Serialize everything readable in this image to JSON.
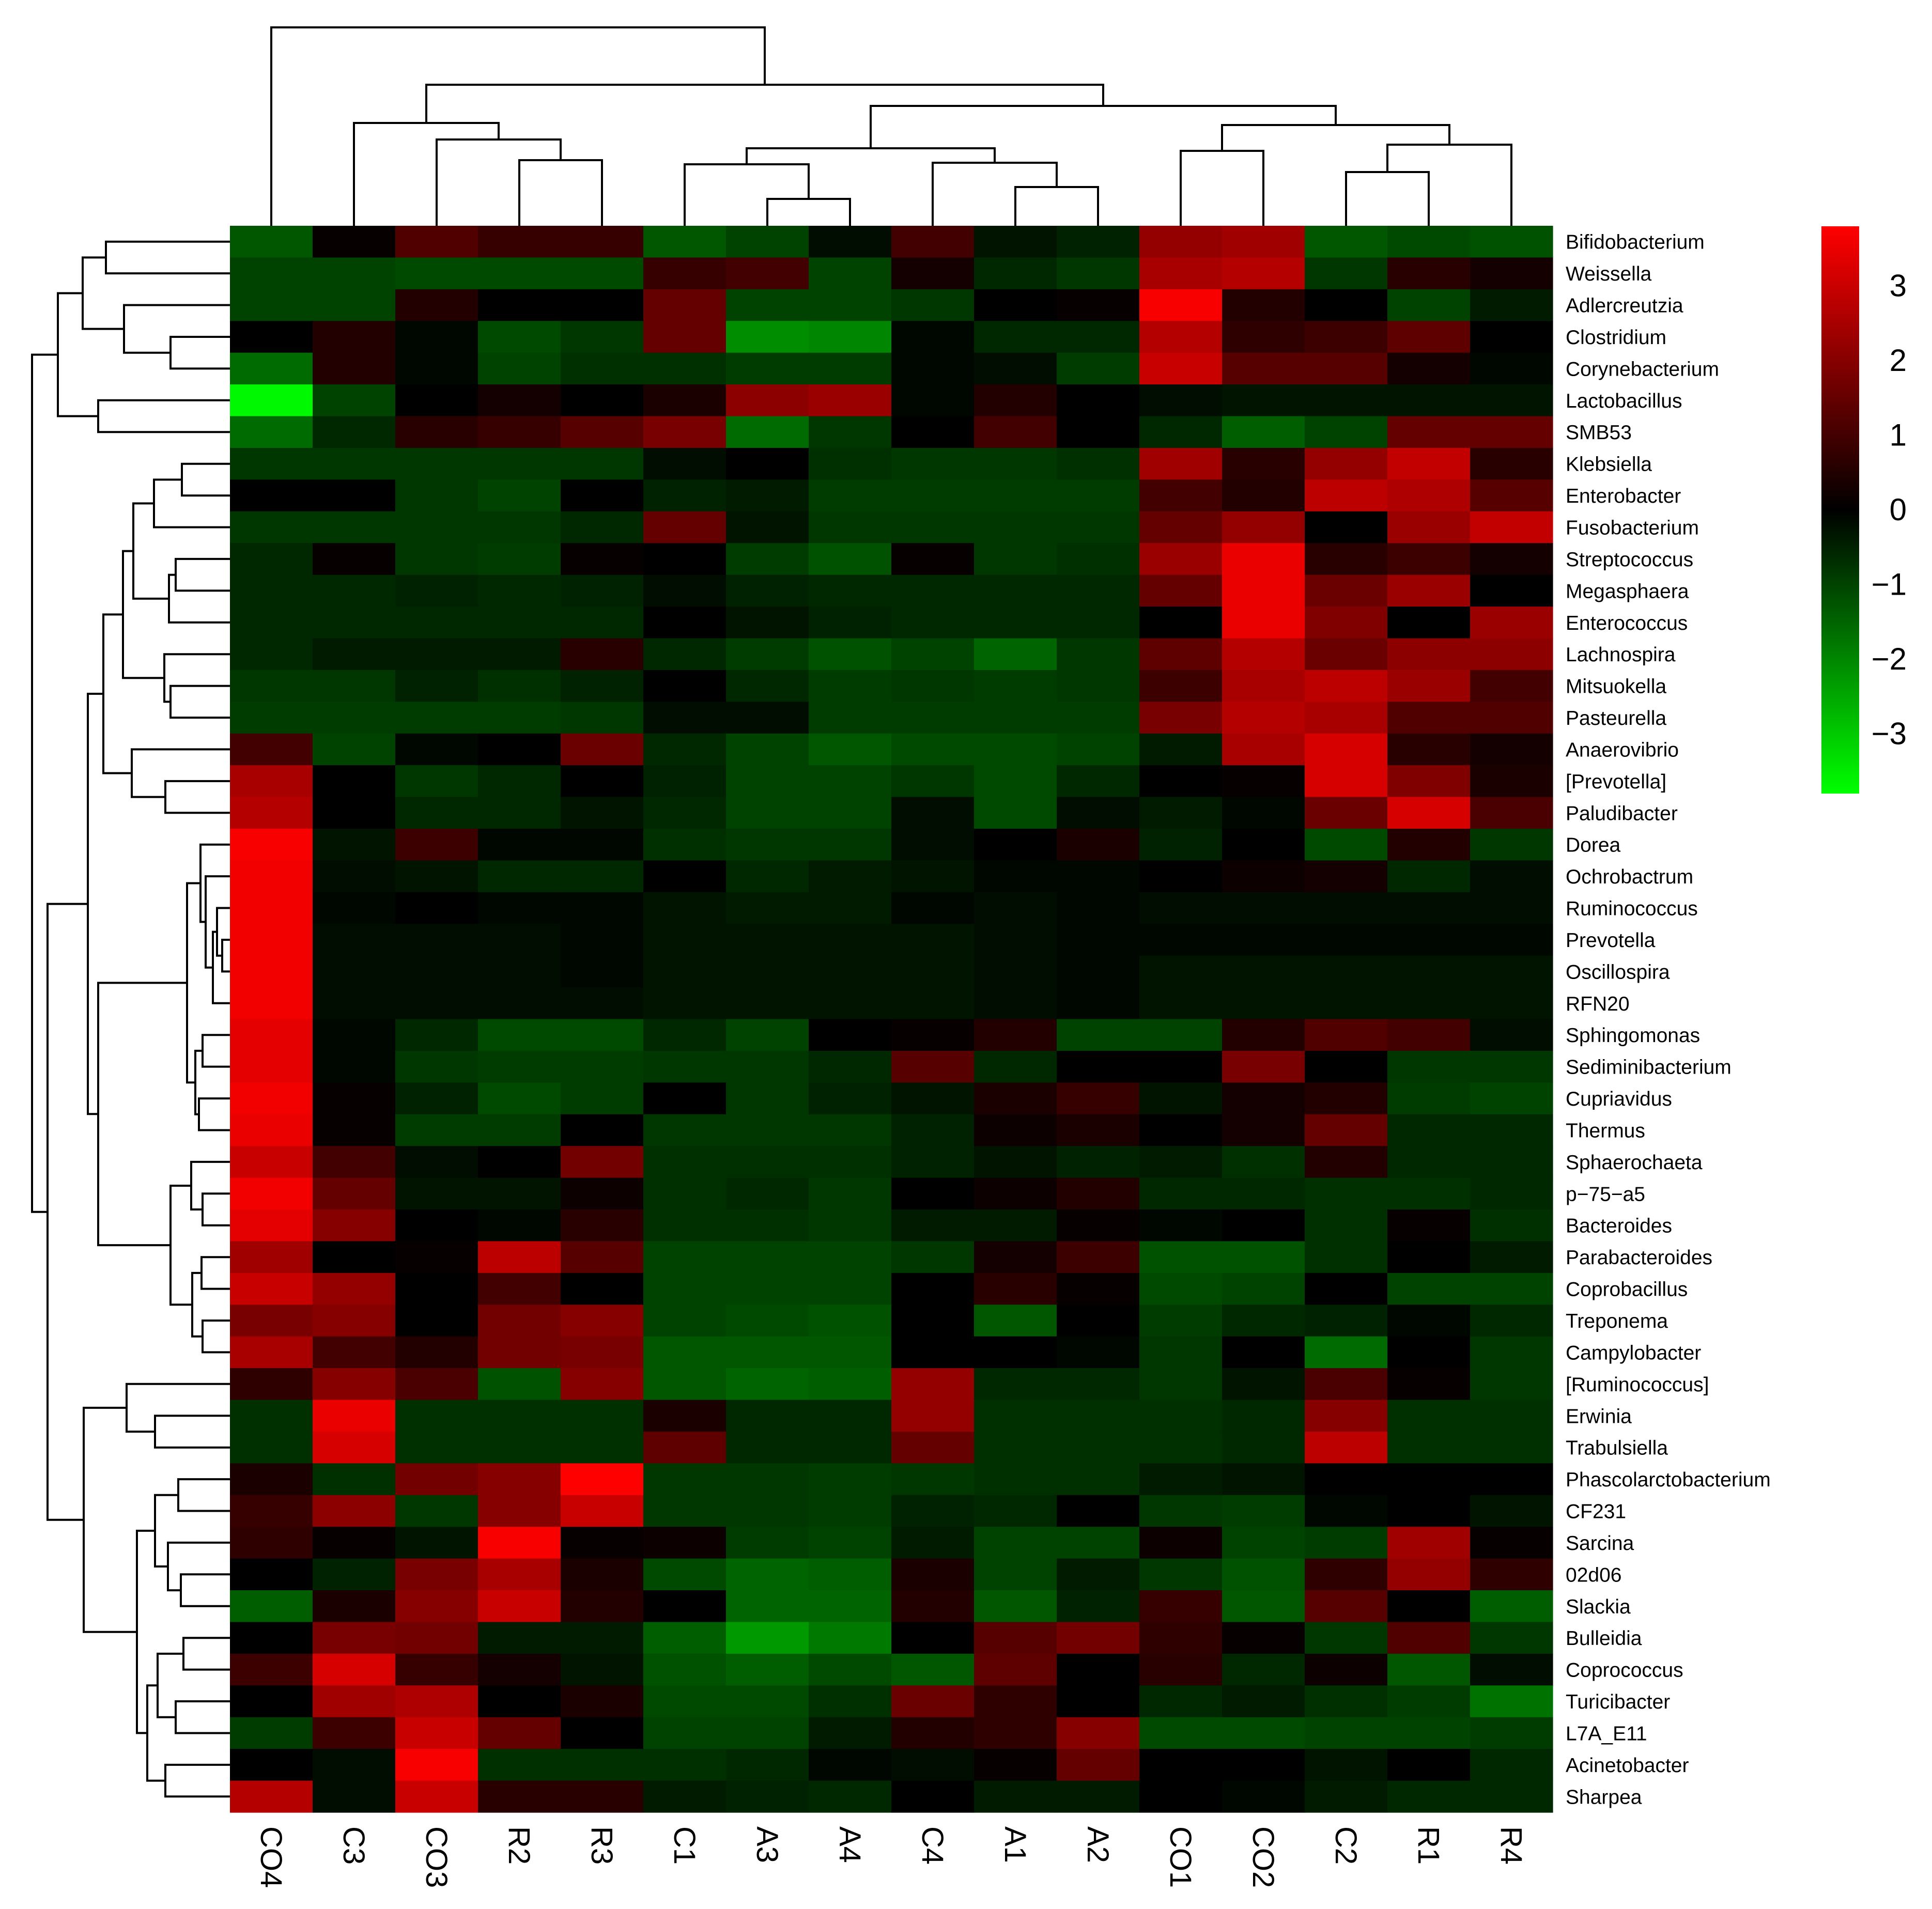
{
  "chart_data": {
    "type": "heatmap",
    "title": "",
    "xlabel": "",
    "ylabel": "",
    "columns": [
      "CO4",
      "C3",
      "CO3",
      "R2",
      "R3",
      "C1",
      "A3",
      "A4",
      "C4",
      "A1",
      "A2",
      "CO1",
      "CO2",
      "C2",
      "R1",
      "R4"
    ],
    "rows": [
      "Bifidobacterium",
      "Weissella",
      "Adlercreutzia",
      "Clostridium",
      "Corynebacterium",
      "Lactobacillus",
      "SMB53",
      "Klebsiella",
      "Enterobacter",
      "Fusobacterium",
      "Streptococcus",
      "Megasphaera",
      "Enterococcus",
      "Lachnospira",
      "Mitsuokella",
      "Pasteurella",
      "Anaerovibrio",
      "[Prevotella]",
      "Paludibacter",
      "Dorea",
      "Ochrobactrum",
      "Ruminococcus",
      "Prevotella",
      "Oscillospira",
      "RFN20",
      "Sphingomonas",
      "Sediminibacterium",
      "Cupriavidus",
      "Thermus",
      "Sphaerochaeta",
      "p−75−a5",
      "Bacteroides",
      "Parabacteroides",
      "Coprobacillus",
      "Treponema",
      "Campylobacter",
      "[Ruminococcus]",
      "Erwinia",
      "Trabulsiella",
      "Phascolarctobacterium",
      "CF231",
      "Sarcina",
      "02d06",
      "Slackia",
      "Bulleidia",
      "Coprococcus",
      "Turicibacter",
      "L7A_E11",
      "Acinetobacter",
      "Sharpea"
    ],
    "values": [
      [
        -1.3,
        0.1,
        1.2,
        0.8,
        0.8,
        -1.3,
        -1.0,
        -0.2,
        1.0,
        -0.3,
        -0.5,
        2.2,
        2.4,
        -1.3,
        -1.1,
        -1.2
      ],
      [
        -1.0,
        -1.0,
        -1.1,
        -1.1,
        -1.1,
        0.8,
        1.0,
        -1.0,
        0.3,
        -0.6,
        -0.8,
        2.5,
        2.7,
        -0.8,
        0.6,
        0.3
      ],
      [
        -1.0,
        -1.0,
        0.5,
        0.0,
        0.0,
        1.5,
        -1.0,
        -1.0,
        -0.8,
        0.0,
        0.1,
        3.7,
        0.5,
        0.0,
        -1.0,
        -0.4
      ],
      [
        0.0,
        0.5,
        -0.1,
        -1.1,
        -0.8,
        1.5,
        -2.1,
        -2.0,
        -0.1,
        -0.6,
        -0.6,
        2.7,
        0.7,
        0.9,
        1.4,
        0.0
      ],
      [
        -1.6,
        0.5,
        -0.1,
        -1.0,
        -0.7,
        -0.7,
        -0.9,
        -0.9,
        -0.1,
        -0.2,
        -0.9,
        3.0,
        1.3,
        1.3,
        0.3,
        -0.1
      ],
      [
        -3.7,
        -1.0,
        0.0,
        0.3,
        0.0,
        0.4,
        2.1,
        2.3,
        -0.1,
        0.5,
        0.0,
        -0.2,
        -0.3,
        -0.3,
        -0.3,
        -0.3
      ],
      [
        -1.6,
        -0.6,
        0.6,
        0.8,
        1.3,
        1.8,
        -1.6,
        -0.8,
        0.0,
        1.0,
        0.0,
        -0.6,
        -1.4,
        -1.0,
        1.5,
        1.5
      ],
      [
        -0.8,
        -0.8,
        -0.8,
        -0.8,
        -0.8,
        -0.2,
        0.0,
        -0.7,
        -0.8,
        -0.8,
        -0.7,
        2.4,
        0.6,
        2.2,
        2.9,
        0.6
      ],
      [
        0.0,
        0.0,
        -0.8,
        -1.0,
        0.0,
        -0.5,
        -0.4,
        -0.9,
        -0.9,
        -0.9,
        -0.9,
        1.0,
        0.5,
        2.8,
        2.6,
        1.3
      ],
      [
        -0.8,
        -0.8,
        -0.8,
        -0.8,
        -0.6,
        1.5,
        -0.3,
        -0.8,
        -0.8,
        -0.8,
        -0.8,
        1.5,
        2.2,
        0.0,
        2.3,
        2.9
      ],
      [
        -0.6,
        0.1,
        -0.8,
        -0.9,
        0.1,
        0.0,
        -0.9,
        -1.2,
        0.1,
        -0.8,
        -0.7,
        2.3,
        3.5,
        0.6,
        0.9,
        0.3
      ],
      [
        -0.6,
        -0.6,
        -0.5,
        -0.6,
        -0.5,
        -0.2,
        -0.5,
        -0.6,
        -0.6,
        -0.6,
        -0.6,
        1.5,
        3.5,
        1.6,
        2.3,
        0.0
      ],
      [
        -0.6,
        -0.6,
        -0.6,
        -0.6,
        -0.6,
        0.0,
        -0.3,
        -0.5,
        -0.6,
        -0.6,
        -0.6,
        0.0,
        3.5,
        1.9,
        0.0,
        2.3
      ],
      [
        -0.6,
        -0.4,
        -0.4,
        -0.4,
        0.6,
        -0.6,
        -0.9,
        -1.2,
        -1.0,
        -1.5,
        -0.8,
        1.4,
        2.7,
        1.6,
        2.1,
        2.1
      ],
      [
        -0.8,
        -0.8,
        -0.5,
        -0.7,
        -0.5,
        0.0,
        -0.6,
        -0.9,
        -0.8,
        -0.9,
        -0.8,
        0.9,
        2.5,
        2.8,
        2.3,
        1.0
      ],
      [
        -0.9,
        -0.9,
        -0.9,
        -0.9,
        -0.8,
        -0.2,
        -0.2,
        -0.9,
        -0.9,
        -0.9,
        -0.9,
        1.8,
        2.7,
        2.5,
        1.2,
        1.2
      ],
      [
        1.0,
        -1.0,
        -0.1,
        0.0,
        1.6,
        -0.6,
        -1.0,
        -1.3,
        -1.1,
        -1.1,
        -1.0,
        -0.4,
        2.5,
        3.2,
        0.6,
        0.3
      ],
      [
        2.5,
        0.0,
        -0.8,
        -0.6,
        0.0,
        -0.5,
        -1.0,
        -1.0,
        -0.8,
        -1.1,
        -0.6,
        0.0,
        0.1,
        3.2,
        1.9,
        0.4
      ],
      [
        2.7,
        0.0,
        -0.6,
        -0.6,
        -0.3,
        -0.6,
        -1.0,
        -1.0,
        -0.2,
        -1.1,
        -0.2,
        -0.4,
        -0.1,
        1.6,
        3.2,
        1.1
      ],
      [
        3.7,
        -0.3,
        0.9,
        -0.1,
        -0.1,
        -0.7,
        -0.8,
        -0.8,
        -0.2,
        0.0,
        0.4,
        -0.5,
        0.0,
        -1.1,
        0.5,
        -0.8
      ],
      [
        3.6,
        -0.2,
        -0.3,
        -0.6,
        -0.6,
        0.0,
        -0.6,
        -0.4,
        -0.3,
        -0.1,
        -0.1,
        0.0,
        0.2,
        0.3,
        -0.6,
        -0.2
      ],
      [
        3.6,
        -0.1,
        0.0,
        -0.1,
        -0.1,
        -0.3,
        -0.4,
        -0.4,
        -0.1,
        -0.2,
        -0.1,
        -0.2,
        -0.2,
        -0.2,
        -0.2,
        -0.2
      ],
      [
        3.6,
        -0.2,
        -0.2,
        -0.2,
        -0.1,
        -0.3,
        -0.3,
        -0.3,
        -0.3,
        -0.2,
        -0.1,
        -0.1,
        -0.1,
        -0.1,
        -0.1,
        -0.1
      ],
      [
        3.6,
        -0.2,
        -0.2,
        -0.2,
        -0.1,
        -0.3,
        -0.3,
        -0.3,
        -0.3,
        -0.2,
        -0.1,
        -0.3,
        -0.3,
        -0.3,
        -0.3,
        -0.3
      ],
      [
        3.6,
        -0.2,
        -0.2,
        -0.2,
        -0.2,
        -0.3,
        -0.3,
        -0.3,
        -0.3,
        -0.2,
        -0.1,
        -0.3,
        -0.3,
        -0.3,
        -0.3,
        -0.3
      ],
      [
        3.4,
        -0.1,
        -0.6,
        -1.1,
        -1.1,
        -0.6,
        -1.0,
        0.0,
        0.1,
        0.5,
        -1.0,
        -1.0,
        0.5,
        1.2,
        1.0,
        -0.2
      ],
      [
        3.4,
        -0.1,
        -0.8,
        -0.9,
        -0.9,
        -0.8,
        -0.8,
        -0.6,
        1.3,
        -0.6,
        0.0,
        0.0,
        1.8,
        0.0,
        -0.8,
        -0.8
      ],
      [
        3.6,
        0.1,
        -0.5,
        -1.1,
        -0.9,
        0.0,
        -0.8,
        -0.5,
        -0.3,
        0.4,
        0.8,
        -0.3,
        0.3,
        0.5,
        -0.9,
        -1.0
      ],
      [
        3.5,
        0.1,
        -0.9,
        -0.9,
        0.0,
        -0.8,
        -0.8,
        -0.8,
        -0.5,
        0.2,
        0.4,
        0.0,
        0.3,
        1.5,
        -0.6,
        -0.6
      ],
      [
        3.0,
        1.0,
        -0.2,
        0.0,
        1.7,
        -0.7,
        -0.7,
        -0.7,
        -0.5,
        -0.3,
        -0.5,
        -0.4,
        -0.7,
        0.5,
        -0.6,
        -0.6
      ],
      [
        3.6,
        1.5,
        -0.3,
        -0.3,
        0.2,
        -0.7,
        -0.6,
        -0.8,
        0.0,
        0.2,
        0.5,
        -0.6,
        -0.6,
        -0.7,
        -0.7,
        -0.6
      ],
      [
        3.4,
        2.0,
        0.0,
        -0.1,
        0.6,
        -0.7,
        -0.7,
        -0.8,
        -0.4,
        -0.4,
        0.1,
        -0.1,
        0.0,
        -0.7,
        0.1,
        -0.7
      ],
      [
        2.4,
        0.0,
        0.1,
        2.8,
        1.3,
        -1.0,
        -1.0,
        -1.0,
        -0.8,
        0.3,
        0.9,
        -1.2,
        -1.2,
        -0.7,
        0.0,
        -0.4
      ],
      [
        3.0,
        2.2,
        0.0,
        1.0,
        0.0,
        -1.0,
        -1.0,
        -1.0,
        0.0,
        0.6,
        0.1,
        -1.1,
        -1.0,
        0.0,
        -1.0,
        -1.0
      ],
      [
        1.8,
        2.0,
        0.0,
        1.7,
        2.0,
        -1.0,
        -1.1,
        -1.2,
        0.0,
        -1.3,
        0.0,
        -0.9,
        -0.6,
        -0.5,
        -0.1,
        -0.6
      ],
      [
        2.5,
        1.0,
        0.5,
        1.7,
        1.8,
        -1.3,
        -1.3,
        -1.3,
        0.0,
        0.0,
        -0.1,
        -0.8,
        0.0,
        -1.6,
        0.0,
        -0.8
      ],
      [
        0.7,
        2.0,
        1.1,
        -1.2,
        2.0,
        -1.3,
        -1.5,
        -1.4,
        2.2,
        -0.6,
        -0.6,
        -0.8,
        -0.3,
        1.1,
        0.1,
        -0.8
      ],
      [
        -0.7,
        3.5,
        -0.7,
        -0.7,
        -0.7,
        0.4,
        -0.6,
        -0.6,
        2.2,
        -0.7,
        -0.7,
        -0.7,
        -0.6,
        2.0,
        -0.7,
        -0.7
      ],
      [
        -0.7,
        3.2,
        -0.7,
        -0.7,
        -0.7,
        1.4,
        -0.6,
        -0.6,
        1.5,
        -0.7,
        -0.7,
        -0.7,
        -0.6,
        2.8,
        -0.7,
        -0.7
      ],
      [
        0.4,
        -0.7,
        1.7,
        2.0,
        3.8,
        -0.8,
        -0.8,
        -0.9,
        -0.8,
        -0.7,
        -0.7,
        -0.4,
        -0.3,
        0.0,
        0.0,
        0.0
      ],
      [
        0.8,
        2.1,
        -0.8,
        2.0,
        3.0,
        -0.8,
        -0.8,
        -0.9,
        -0.5,
        -0.6,
        0.0,
        -0.8,
        -0.9,
        -0.1,
        0.0,
        -0.3
      ],
      [
        0.7,
        0.1,
        -0.3,
        3.7,
        0.1,
        0.2,
        -0.9,
        -1.0,
        -0.4,
        -1.0,
        -1.0,
        0.2,
        -1.0,
        -0.9,
        2.4,
        0.1
      ],
      [
        0.0,
        -0.5,
        1.8,
        2.5,
        0.4,
        -1.1,
        -1.5,
        -1.4,
        0.4,
        -1.0,
        -0.4,
        -0.8,
        -1.2,
        0.7,
        2.2,
        0.7
      ],
      [
        -1.4,
        0.4,
        2.0,
        3.0,
        0.5,
        0.0,
        -1.5,
        -1.5,
        0.5,
        -1.3,
        -0.5,
        0.8,
        -1.3,
        1.3,
        0.0,
        -1.4
      ],
      [
        0.0,
        1.8,
        1.7,
        -0.4,
        -0.4,
        -1.4,
        -2.3,
        -1.8,
        0.0,
        1.3,
        1.7,
        0.7,
        0.1,
        -0.8,
        1.2,
        -0.8
      ],
      [
        0.9,
        3.2,
        0.8,
        0.3,
        -0.3,
        -1.2,
        -1.4,
        -1.1,
        -1.3,
        1.4,
        0.0,
        0.6,
        -0.6,
        0.2,
        -1.3,
        -0.2
      ],
      [
        0.0,
        2.4,
        2.6,
        0.0,
        0.4,
        -1.1,
        -1.1,
        -0.7,
        1.6,
        0.7,
        0.0,
        -0.6,
        -0.4,
        -0.7,
        -0.9,
        -1.7
      ],
      [
        -0.9,
        0.9,
        3.0,
        1.5,
        0.0,
        -1.0,
        -1.0,
        -0.4,
        0.5,
        0.7,
        2.0,
        -1.1,
        -1.1,
        -1.0,
        -1.0,
        -0.9
      ],
      [
        0.0,
        -0.2,
        3.7,
        -0.7,
        -0.7,
        -0.7,
        -0.6,
        -0.1,
        -0.2,
        0.1,
        1.5,
        0.0,
        0.0,
        -0.3,
        0.0,
        -0.6
      ],
      [
        2.7,
        -0.2,
        3.0,
        0.6,
        0.6,
        -0.4,
        -0.5,
        -0.6,
        0.0,
        -0.4,
        -0.4,
        0.0,
        -0.1,
        -0.4,
        -0.6,
        -0.6
      ]
    ],
    "color_scale": {
      "min": -3.8,
      "max": 3.8,
      "low_color": "#00ff00",
      "mid_color": "#000000",
      "high_color": "#ff0000",
      "ticks": [
        "3",
        "2",
        "1",
        "0",
        "−1",
        "−2",
        "−3"
      ]
    },
    "column_dendrogram": true,
    "row_dendrogram": true,
    "legend": "right"
  }
}
